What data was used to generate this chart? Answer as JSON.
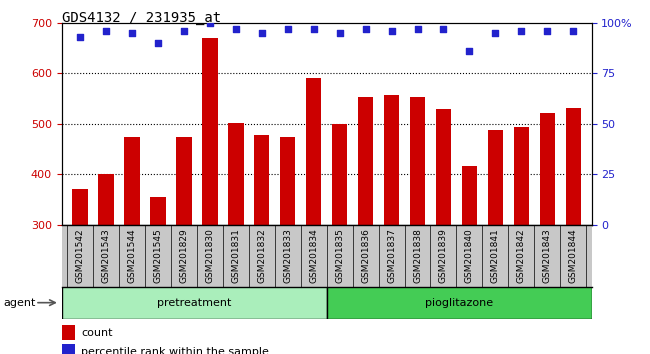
{
  "title": "GDS4132 / 231935_at",
  "samples": [
    "GSM201542",
    "GSM201543",
    "GSM201544",
    "GSM201545",
    "GSM201829",
    "GSM201830",
    "GSM201831",
    "GSM201832",
    "GSM201833",
    "GSM201834",
    "GSM201835",
    "GSM201836",
    "GSM201837",
    "GSM201838",
    "GSM201839",
    "GSM201840",
    "GSM201841",
    "GSM201842",
    "GSM201843",
    "GSM201844"
  ],
  "counts": [
    370,
    401,
    474,
    355,
    474,
    670,
    501,
    478,
    474,
    590,
    500,
    554,
    558,
    554,
    530,
    417,
    488,
    494,
    522,
    531
  ],
  "percentiles": [
    93,
    96,
    95,
    90,
    96,
    100,
    97,
    95,
    97,
    97,
    95,
    97,
    96,
    97,
    97,
    86,
    95,
    96,
    96,
    96
  ],
  "pretreatment_count": 10,
  "pioglitazone_count": 10,
  "ylim_left": [
    300,
    700
  ],
  "ylim_right": [
    0,
    100
  ],
  "yticks_left": [
    300,
    400,
    500,
    600,
    700
  ],
  "yticks_right": [
    0,
    25,
    50,
    75,
    100
  ],
  "bar_color": "#cc0000",
  "dot_color": "#2222cc",
  "pretreatment_color": "#aaeebb",
  "pioglitazone_color": "#44cc55",
  "bg_color": "#c8c8c8",
  "plot_bg": "#ffffff",
  "title_color": "#000000",
  "left_axis_color": "#cc0000",
  "right_axis_color": "#2222cc",
  "grid_color": "#000000"
}
